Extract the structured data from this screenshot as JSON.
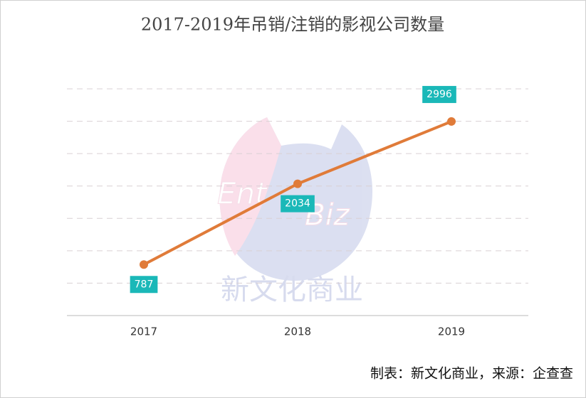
{
  "chart_data": {
    "type": "line",
    "title": "2017-2019年吊销/注销的影视公司数量",
    "categories": [
      "2017",
      "2018",
      "2019"
    ],
    "series": [
      {
        "name": "吊销/注销的影视公司数量",
        "color": "#e07b39",
        "values": [
          787,
          2034,
          2996
        ]
      }
    ],
    "ylim": [
      0,
      3500
    ],
    "yticks": [
      0,
      500,
      1000,
      1500,
      2000,
      2500,
      3000,
      3500
    ],
    "grid": true,
    "label_color": "#1ab8b8",
    "watermark": [
      "Ent",
      "Biz",
      "新文化商业"
    ],
    "source": "制表：新文化商业，来源：企查查"
  }
}
